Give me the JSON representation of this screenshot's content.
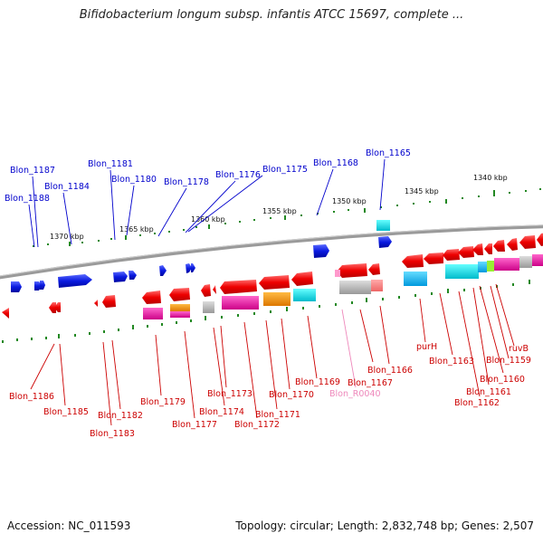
{
  "header": {
    "title": "Bifidobacterium longum subsp. infantis ATCC 15697, complete ..."
  },
  "footer": {
    "accession": "Accession: NC_011593",
    "summary": "Topology: circular; Length: 2,832,748 bp; Genes: 2,507"
  },
  "colors": {
    "forward_label": "#0000cc",
    "reverse_label": "#cc0000",
    "rna_label": "#ee88bb",
    "tick": "#228822",
    "backbone": "#888888"
  },
  "scale": {
    "labels": [
      "1370 kbp",
      "1365 kbp",
      "1360 kbp",
      "1355 kbp",
      "1350 kbp",
      "1345 kbp",
      "1340 kbp"
    ]
  },
  "genes_top": [
    "Blon_1187",
    "Blon_1188",
    "Blon_1184",
    "Blon_1181",
    "Blon_1180",
    "Blon_1178",
    "Blon_1176",
    "Blon_1175",
    "Blon_1168",
    "Blon_1165"
  ],
  "genes_bottom": [
    "Blon_1186",
    "Blon_1185",
    "Blon_1183",
    "Blon_1182",
    "Blon_1179",
    "Blon_1177",
    "Blon_1174",
    "Blon_1173",
    "Blon_1172",
    "Blon_1171",
    "Blon_1170",
    "Blon_1169",
    "Blon_R0040",
    "Blon_1167",
    "Blon_1166",
    "purH",
    "Blon_1163",
    "Blon_1162",
    "Blon_1161",
    "Blon_1160",
    "Blon_1159",
    "ruvB"
  ]
}
